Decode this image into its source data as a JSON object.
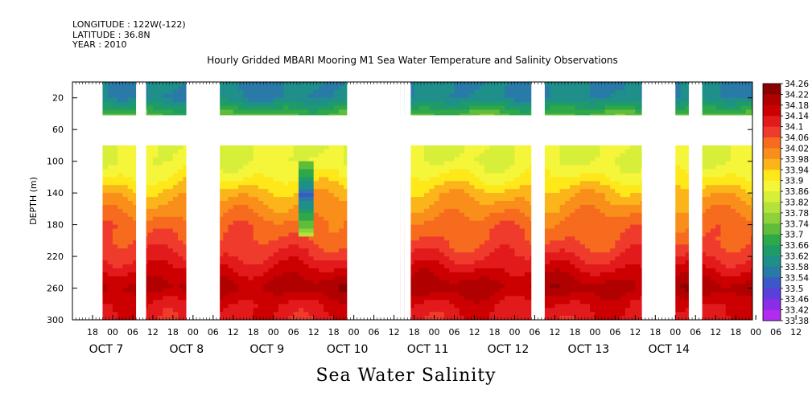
{
  "header": {
    "longitude": "LONGITUDE : 122W(-122)",
    "latitude": "LATITUDE : 36.8N",
    "year": "YEAR : 2010",
    "title": "Hourly Gridded MBARI Mooring M1 Sea Water Temperature and Salinity Observations"
  },
  "footer": {
    "variable": "Sea Water Salinity"
  },
  "chart_data": {
    "type": "heatmap",
    "title": "Hourly Gridded MBARI Mooring M1 Sea Water Temperature and Salinity Observations",
    "xlabel": "",
    "ylabel": "DEPTH (m)",
    "ylim": [
      300,
      0
    ],
    "y_reversed": true,
    "y_ticks": [
      20,
      60,
      100,
      140,
      180,
      220,
      260,
      300
    ],
    "x_hour_ticks": [
      "18",
      "00",
      "06",
      "12",
      "18",
      "00",
      "06",
      "12",
      "18",
      "00",
      "06",
      "12",
      "18",
      "00",
      "06",
      "12",
      "18",
      "00",
      "06",
      "12",
      "18",
      "00",
      "06",
      "12",
      "18",
      "00",
      "06",
      "12",
      "18",
      "00",
      "06",
      "12",
      "18",
      "00",
      "06",
      "12"
    ],
    "x_day_labels": [
      "OCT  7",
      "OCT  8",
      "OCT  9",
      "OCT 10",
      "OCT 11",
      "OCT 12",
      "OCT 13",
      "OCT 14"
    ],
    "x_range_hours_since_oct6_12": [
      0,
      203
    ],
    "colorbar": {
      "values": [
        34.26,
        34.22,
        34.18,
        34.14,
        34.1,
        34.06,
        34.02,
        33.98,
        33.94,
        33.9,
        33.86,
        33.82,
        33.78,
        33.74,
        33.7,
        33.66,
        33.62,
        33.58,
        33.54,
        33.5,
        33.46,
        33.42,
        33.38
      ],
      "colors": [
        "#8b0000",
        "#b00000",
        "#cc0000",
        "#e31a1c",
        "#ef3b2c",
        "#f66b1e",
        "#fa8e1a",
        "#fbb41a",
        "#fee81a",
        "#f5f53a",
        "#d8ef3a",
        "#b5e23a",
        "#8ed13a",
        "#5fbd3a",
        "#2fa84a",
        "#1f9b6a",
        "#1f8f8a",
        "#2a7aa8",
        "#3a58c8",
        "#5a3fdb",
        "#8a2ce8",
        "#b12cf0"
      ]
    },
    "depth_profile": [
      {
        "depth": 20,
        "salinity": 33.58
      },
      {
        "depth": 40,
        "salinity": 33.7
      },
      {
        "depth": 80,
        "salinity": 33.86
      },
      {
        "depth": 100,
        "salinity": 33.86
      },
      {
        "depth": 120,
        "salinity": 33.9
      },
      {
        "depth": 140,
        "salinity": 33.96
      },
      {
        "depth": 160,
        "salinity": 34.0
      },
      {
        "depth": 180,
        "salinity": 34.04
      },
      {
        "depth": 200,
        "salinity": 34.06
      },
      {
        "depth": 220,
        "salinity": 34.1
      },
      {
        "depth": 250,
        "salinity": 34.18
      },
      {
        "depth": 260,
        "salinity": 34.2
      },
      {
        "depth": 280,
        "salinity": 34.14
      },
      {
        "depth": 300,
        "salinity": 34.12
      }
    ],
    "data_gaps_hours": [
      {
        "start": 0,
        "end": 9
      },
      {
        "start": 19,
        "end": 22
      },
      {
        "start": 34,
        "end": 44
      },
      {
        "start": 82,
        "end": 98
      },
      {
        "start": 98,
        "end": 99
      },
      {
        "start": 99,
        "end": 101
      },
      {
        "start": 137,
        "end": 141
      },
      {
        "start": 170,
        "end": 180
      },
      {
        "start": 184,
        "end": 188
      }
    ],
    "fresh_anomaly": {
      "time_hours": 69,
      "depth_range": [
        100,
        190
      ],
      "min_salinity": 33.54
    }
  }
}
